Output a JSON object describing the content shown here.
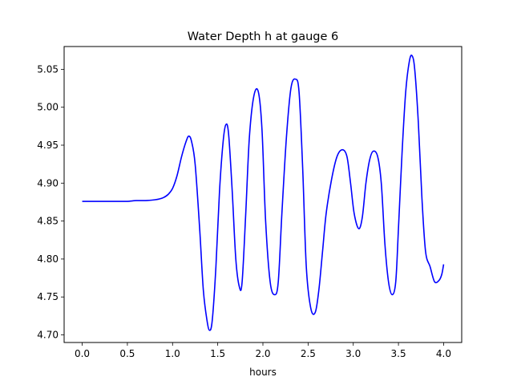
{
  "chart_data": {
    "type": "line",
    "title": "Water Depth h at gauge 6",
    "xlabel": "hours",
    "ylabel": "",
    "xlim": [
      -0.2,
      4.2
    ],
    "ylim": [
      4.69,
      5.08
    ],
    "xticks": [
      0.0,
      0.5,
      1.0,
      1.5,
      2.0,
      2.5,
      3.0,
      3.5,
      4.0
    ],
    "xtick_labels": [
      "0.0",
      "0.5",
      "1.0",
      "1.5",
      "2.0",
      "2.5",
      "3.0",
      "3.5",
      "4.0"
    ],
    "yticks": [
      4.7,
      4.75,
      4.8,
      4.85,
      4.9,
      4.95,
      5.0,
      5.05
    ],
    "ytick_labels": [
      "4.70",
      "4.75",
      "4.80",
      "4.85",
      "4.90",
      "4.95",
      "5.00",
      "5.05"
    ],
    "grid": false,
    "series": [
      {
        "color": "#0000ff",
        "x": [
          0.0,
          0.2,
          0.4,
          0.5,
          0.6,
          0.7,
          0.8,
          0.85,
          0.9,
          0.95,
          1.0,
          1.05,
          1.1,
          1.15,
          1.18,
          1.21,
          1.25,
          1.3,
          1.34,
          1.38,
          1.41,
          1.44,
          1.48,
          1.52,
          1.56,
          1.59,
          1.62,
          1.66,
          1.7,
          1.74,
          1.77,
          1.81,
          1.85,
          1.9,
          1.95,
          1.99,
          2.03,
          2.08,
          2.13,
          2.17,
          2.21,
          2.26,
          2.31,
          2.36,
          2.4,
          2.44,
          2.48,
          2.53,
          2.58,
          2.62,
          2.66,
          2.7,
          2.76,
          2.82,
          2.88,
          2.93,
          2.97,
          3.01,
          3.06,
          3.1,
          3.14,
          3.18,
          3.22,
          3.27,
          3.31,
          3.35,
          3.39,
          3.43,
          3.47,
          3.5,
          3.54,
          3.58,
          3.62,
          3.65,
          3.68,
          3.72,
          3.76,
          3.8,
          3.85,
          3.9,
          3.95,
          3.98,
          4.0
        ],
        "y": [
          4.876,
          4.876,
          4.876,
          4.876,
          4.877,
          4.877,
          4.878,
          4.879,
          4.881,
          4.885,
          4.893,
          4.91,
          4.935,
          4.955,
          4.962,
          4.955,
          4.925,
          4.84,
          4.76,
          4.72,
          4.706,
          4.72,
          4.79,
          4.89,
          4.955,
          4.977,
          4.965,
          4.89,
          4.8,
          4.763,
          4.77,
          4.86,
          4.96,
          5.015,
          5.02,
          4.97,
          4.85,
          4.77,
          4.753,
          4.77,
          4.86,
          4.96,
          5.025,
          5.037,
          5.02,
          4.92,
          4.79,
          4.735,
          4.73,
          4.76,
          4.81,
          4.86,
          4.905,
          4.935,
          4.944,
          4.935,
          4.9,
          4.86,
          4.84,
          4.855,
          4.9,
          4.93,
          4.942,
          4.935,
          4.9,
          4.82,
          4.77,
          4.753,
          4.77,
          4.84,
          4.94,
          5.02,
          5.06,
          5.068,
          5.05,
          4.98,
          4.88,
          4.81,
          4.79,
          4.77,
          4.772,
          4.78,
          4.793
        ]
      }
    ]
  }
}
